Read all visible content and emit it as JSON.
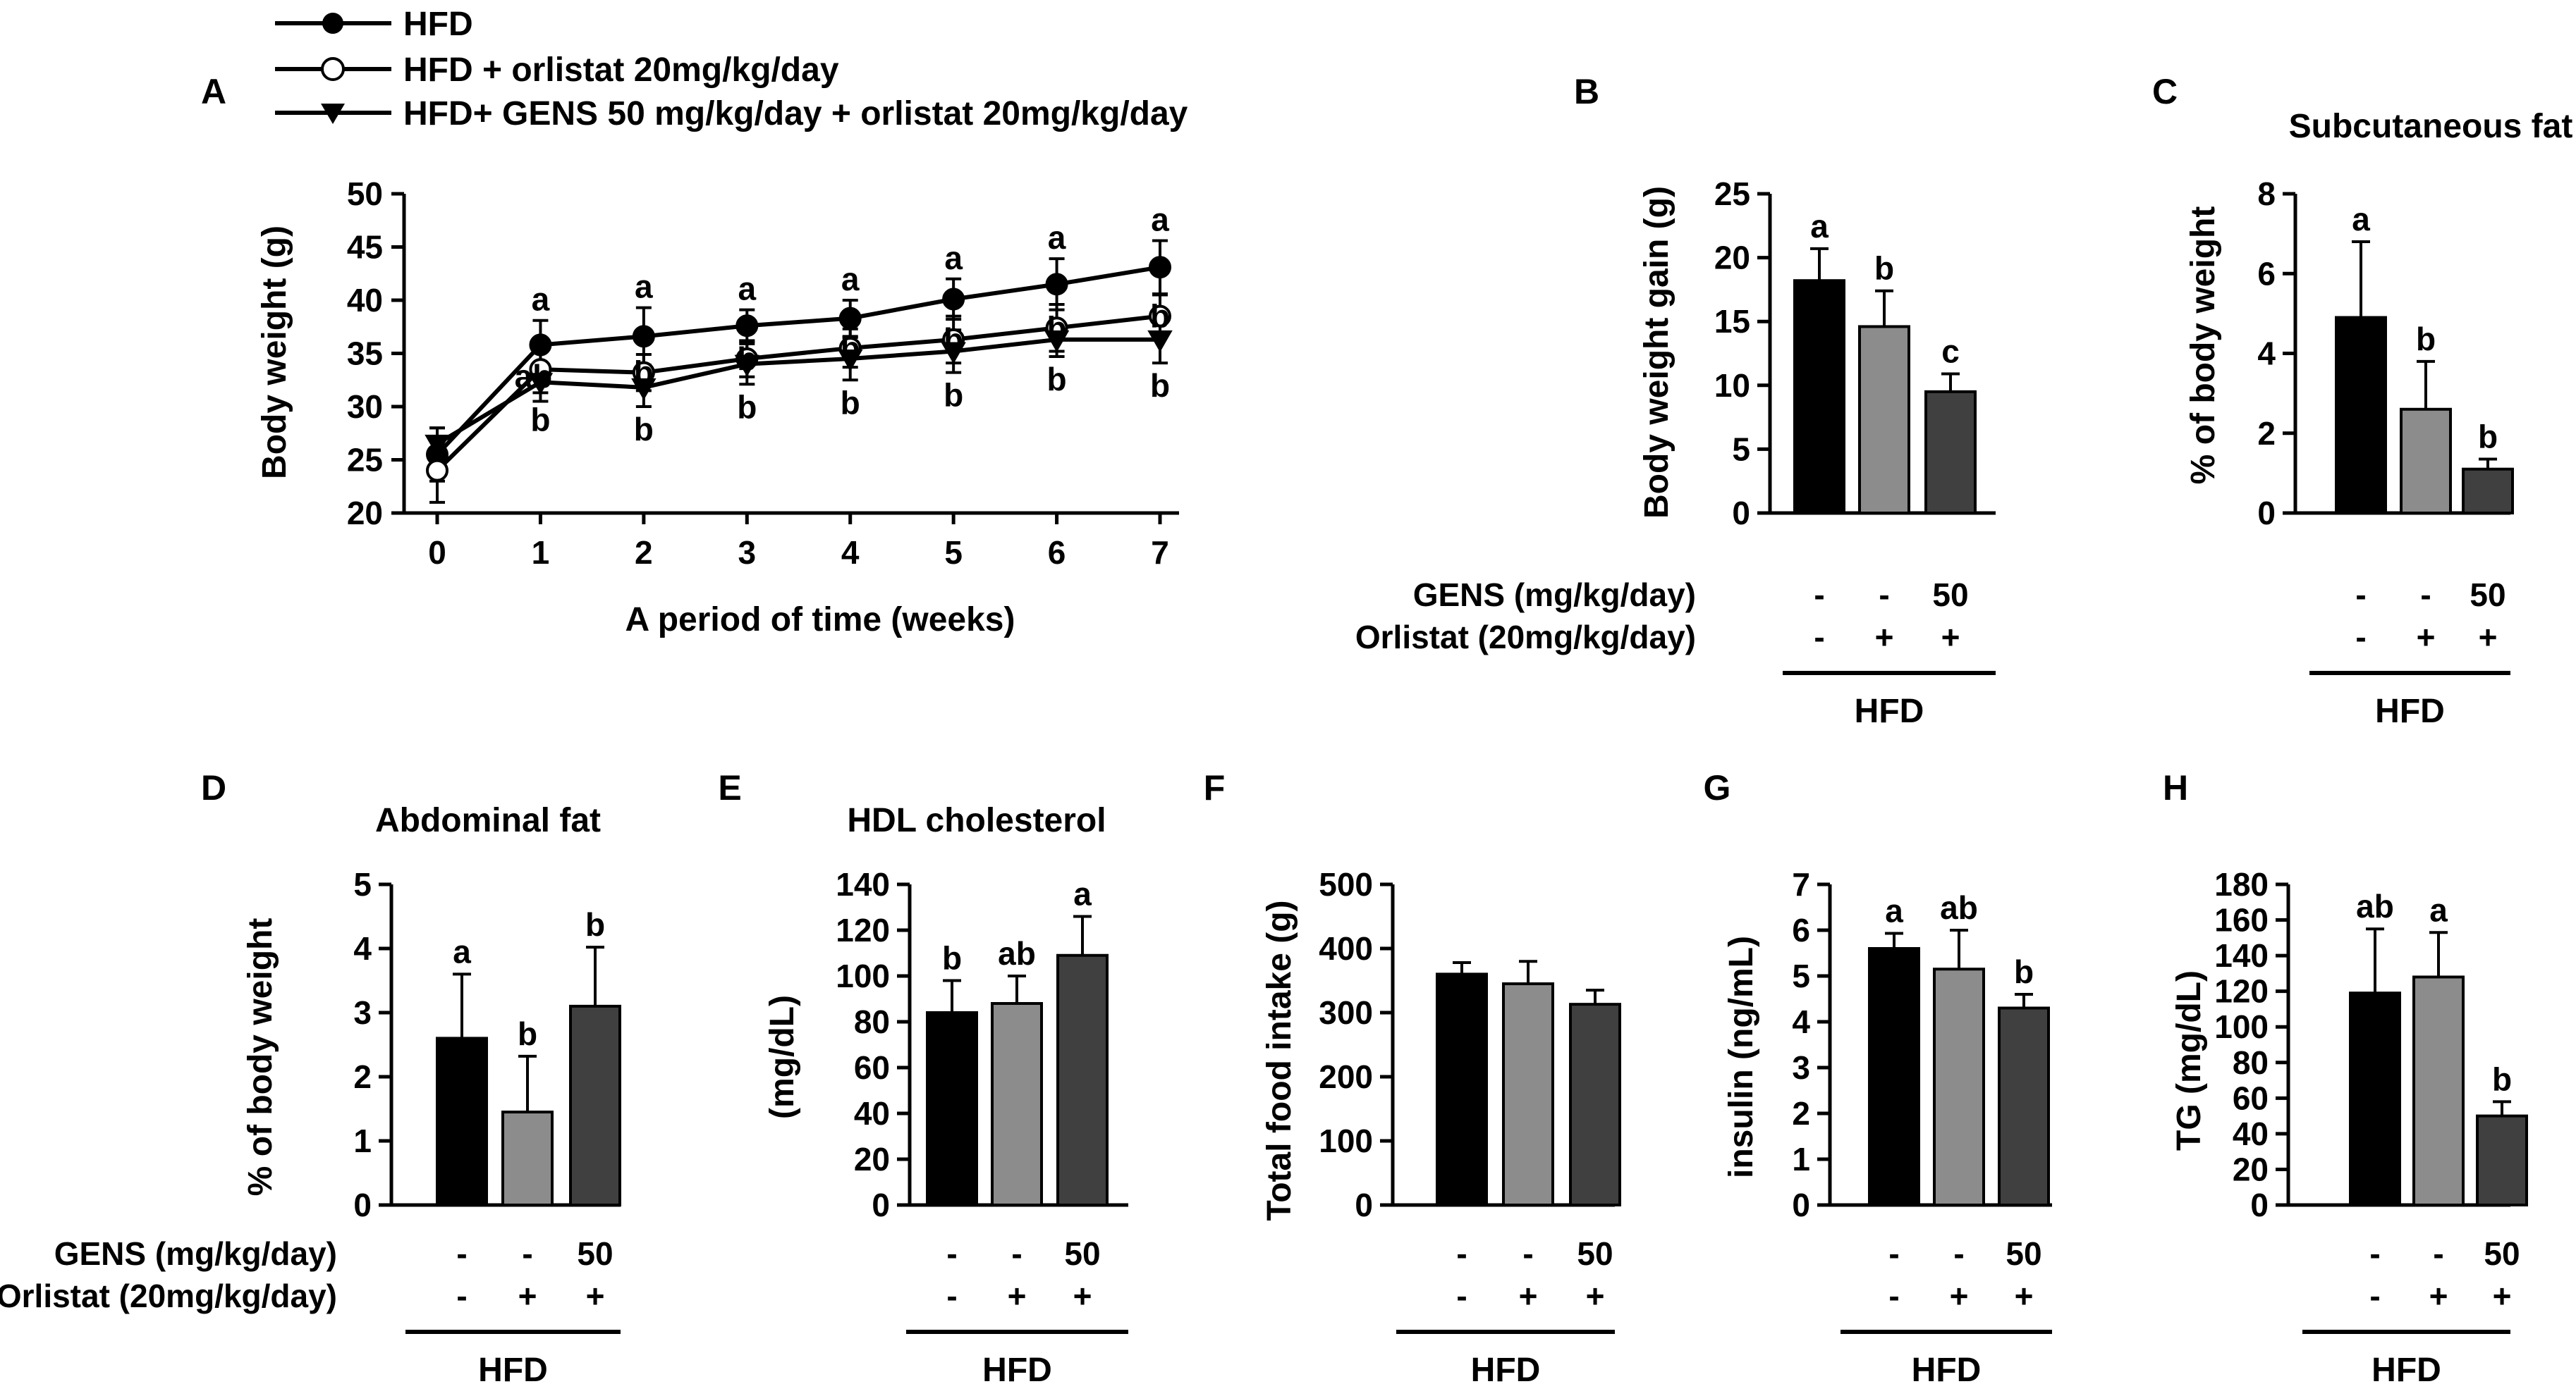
{
  "colors": {
    "black": "#000000",
    "bar_light": "#8c8c8c",
    "bar_dark": "#404040",
    "white": "#ffffff"
  },
  "legend": [
    {
      "label": "HFD",
      "marker": "circle-filled"
    },
    {
      "label": "HFD + orlistat 20mg/kg/day",
      "marker": "circle-open"
    },
    {
      "label": "HFD+ GENS 50 mg/kg/day + orlistat 20mg/kg/day",
      "marker": "triangle-down"
    }
  ],
  "group_labels": {
    "gens_label": "GENS (mg/kg/day)",
    "orlistat_label": "Orlistat (20mg/kg/day)",
    "gens_values": [
      "-",
      "-",
      "50"
    ],
    "orlistat_values": [
      "-",
      "+",
      "+"
    ],
    "diet": "HFD"
  },
  "chart_data": [
    {
      "panel": "A",
      "type": "line",
      "title": "",
      "xlabel": "A period of time (weeks)",
      "ylabel": "Body weight (g)",
      "x": [
        0,
        1,
        2,
        3,
        4,
        5,
        6,
        7
      ],
      "xticks": [
        "0",
        "1",
        "2",
        "3",
        "4",
        "5",
        "6",
        "7"
      ],
      "ylim": [
        20,
        50
      ],
      "yticks": [
        20,
        25,
        30,
        35,
        40,
        45,
        50
      ],
      "series": [
        {
          "name": "HFD",
          "marker": "circle-filled",
          "values": [
            25.5,
            35.8,
            36.6,
            37.6,
            38.3,
            40.1,
            41.5,
            43.1
          ],
          "errors": [
            2.5,
            2.3,
            2.7,
            1.5,
            1.7,
            1.9,
            2.4,
            2.5
          ],
          "letters": [
            "",
            "a",
            "a",
            "a",
            "a",
            "a",
            "a",
            "a"
          ]
        },
        {
          "name": "HFD + orlistat 20mg/kg/day",
          "marker": "circle-open",
          "values": [
            24.0,
            33.5,
            33.2,
            34.5,
            35.5,
            36.3,
            37.4,
            38.5
          ],
          "errors": [
            3.0,
            2.2,
            1.7,
            1.7,
            1.8,
            2.2,
            2.2,
            2.0
          ],
          "letters": [
            "",
            "ab",
            "b",
            "b",
            "b",
            "b",
            "b",
            "b"
          ]
        },
        {
          "name": "HFD+ GENS 50 mg/kg/day + orlistat 20mg/kg/day",
          "marker": "triangle-down",
          "values": [
            26.5,
            32.3,
            31.8,
            34.0,
            34.5,
            35.2,
            36.3,
            36.3
          ],
          "errors": [
            1.5,
            1.8,
            1.8,
            1.9,
            2.0,
            2.0,
            1.6,
            2.2
          ],
          "letters": [
            "",
            "b",
            "b",
            "b",
            "b",
            "b",
            "b",
            "b"
          ]
        }
      ]
    },
    {
      "panel": "B",
      "type": "bar",
      "title": "",
      "ylabel": "Body weight gain (g)",
      "ylim": [
        0,
        25
      ],
      "yticks": [
        0,
        5,
        10,
        15,
        20,
        25
      ],
      "values": [
        18.2,
        14.6,
        9.5
      ],
      "errors": [
        2.5,
        2.8,
        1.4
      ],
      "letters": [
        "a",
        "b",
        "c"
      ]
    },
    {
      "panel": "C",
      "type": "bar",
      "title": "Subcutaneous fat",
      "ylabel": "% of body weight",
      "ylim": [
        0,
        8
      ],
      "yticks": [
        0,
        2,
        4,
        6,
        8
      ],
      "values": [
        4.9,
        2.6,
        1.1
      ],
      "errors": [
        1.9,
        1.2,
        0.25
      ],
      "letters": [
        "a",
        "b",
        "b"
      ]
    },
    {
      "panel": "D",
      "type": "bar",
      "title": "Abdominal fat",
      "ylabel": "% of body weight",
      "ylim": [
        0,
        5
      ],
      "yticks": [
        0,
        1,
        2,
        3,
        4,
        5
      ],
      "values": [
        2.6,
        1.45,
        3.1
      ],
      "errors": [
        1.0,
        0.87,
        0.92
      ],
      "letters": [
        "a",
        "b",
        "b"
      ]
    },
    {
      "panel": "E",
      "type": "bar",
      "title": "HDL cholesterol",
      "ylabel": "(mg/dL)",
      "ylim": [
        0,
        140
      ],
      "yticks": [
        0,
        20,
        40,
        60,
        80,
        100,
        120,
        140
      ],
      "values": [
        84,
        88,
        109
      ],
      "errors": [
        14,
        12,
        17
      ],
      "letters": [
        "b",
        "ab",
        "a"
      ]
    },
    {
      "panel": "F",
      "type": "bar",
      "title": "",
      "ylabel": "Total food intake (g)",
      "ylim": [
        0,
        500
      ],
      "yticks": [
        0,
        100,
        200,
        300,
        400,
        500
      ],
      "values": [
        360,
        345,
        313
      ],
      "errors": [
        18,
        35,
        22
      ],
      "letters": [
        "",
        "",
        ""
      ]
    },
    {
      "panel": "G",
      "type": "bar",
      "title": "",
      "ylabel": "insulin (ng/mL)",
      "ylim": [
        0,
        7
      ],
      "yticks": [
        0,
        1,
        2,
        3,
        4,
        5,
        6,
        7
      ],
      "values": [
        5.6,
        5.15,
        4.3
      ],
      "errors": [
        0.33,
        0.85,
        0.3
      ],
      "letters": [
        "a",
        "ab",
        "b"
      ]
    },
    {
      "panel": "H",
      "type": "bar",
      "title": "",
      "ylabel": "TG (mg/dL)",
      "ylim": [
        0,
        180
      ],
      "yticks": [
        0,
        20,
        40,
        60,
        80,
        100,
        120,
        140,
        160,
        180
      ],
      "values": [
        119,
        128,
        50
      ],
      "errors": [
        36,
        25,
        8
      ],
      "letters": [
        "ab",
        "a",
        "b"
      ]
    }
  ]
}
